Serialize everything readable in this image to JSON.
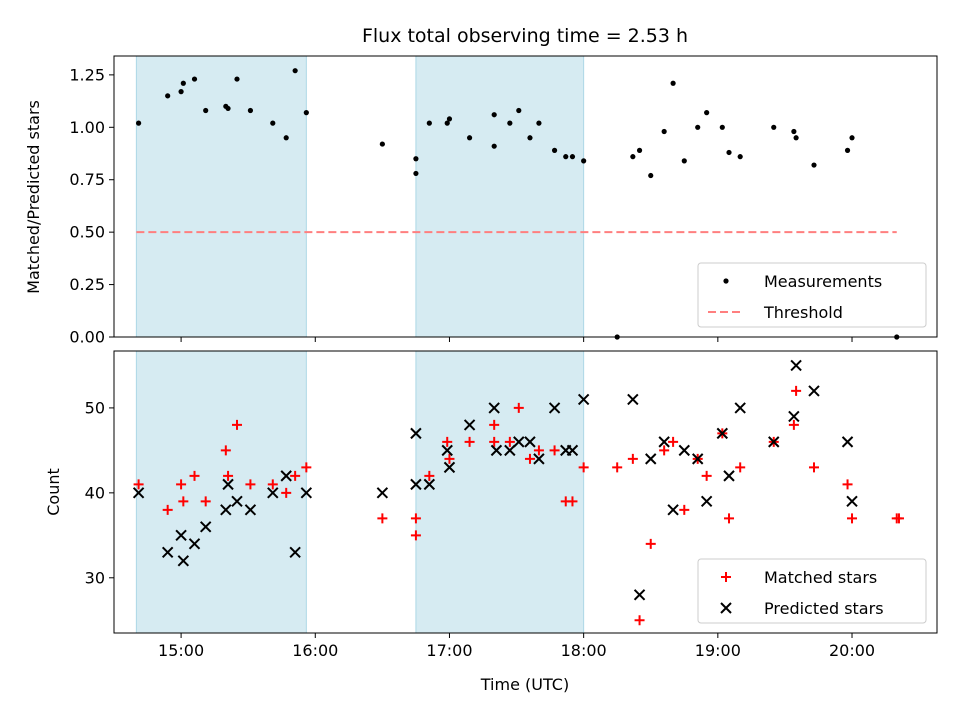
{
  "chart_data": [
    {
      "type": "scatter",
      "title": "Flux total observing time = 2.53 h",
      "xlabel": "",
      "ylabel": "Matched/Predicted stars",
      "ylim": [
        0,
        1.34
      ],
      "yticks": [
        "0.00",
        "0.25",
        "0.50",
        "0.75",
        "1.00",
        "1.25"
      ],
      "shaded_spans": [
        [
          "14:40",
          "15:56"
        ],
        [
          "16:45",
          "18:00"
        ]
      ],
      "series": [
        {
          "name": "Measurements",
          "marker": "dot",
          "color": "#000000",
          "points": [
            [
              "14:41",
              1.02
            ],
            [
              "14:54",
              1.15
            ],
            [
              "15:00",
              1.17
            ],
            [
              "15:01",
              1.21
            ],
            [
              "15:06",
              1.23
            ],
            [
              "15:11",
              1.08
            ],
            [
              "15:20",
              1.1
            ],
            [
              "15:21",
              1.09
            ],
            [
              "15:25",
              1.23
            ],
            [
              "15:31",
              1.08
            ],
            [
              "15:41",
              1.02
            ],
            [
              "15:47",
              0.95
            ],
            [
              "15:51",
              1.27
            ],
            [
              "15:56",
              1.07
            ],
            [
              "16:30",
              0.92
            ],
            [
              "16:45",
              0.85
            ],
            [
              "16:45",
              0.78
            ],
            [
              "16:51",
              1.02
            ],
            [
              "16:59",
              1.02
            ],
            [
              "17:00",
              1.04
            ],
            [
              "17:09",
              0.95
            ],
            [
              "17:20",
              0.91
            ],
            [
              "17:20",
              1.06
            ],
            [
              "17:27",
              1.02
            ],
            [
              "17:31",
              1.08
            ],
            [
              "17:36",
              0.95
            ],
            [
              "17:40",
              1.02
            ],
            [
              "17:47",
              0.89
            ],
            [
              "17:52",
              0.86
            ],
            [
              "17:55",
              0.86
            ],
            [
              "18:00",
              0.84
            ],
            [
              "18:15",
              0.0
            ],
            [
              "18:22",
              0.86
            ],
            [
              "18:25",
              0.89
            ],
            [
              "18:30",
              0.77
            ],
            [
              "18:36",
              0.98
            ],
            [
              "18:40",
              1.21
            ],
            [
              "18:45",
              0.84
            ],
            [
              "18:51",
              1.0
            ],
            [
              "18:55",
              1.07
            ],
            [
              "19:02",
              1.0
            ],
            [
              "19:05",
              0.88
            ],
            [
              "19:10",
              0.86
            ],
            [
              "19:25",
              1.0
            ],
            [
              "19:34",
              0.98
            ],
            [
              "19:35",
              0.95
            ],
            [
              "19:43",
              0.82
            ],
            [
              "19:58",
              0.89
            ],
            [
              "20:00",
              0.95
            ],
            [
              "20:20",
              0.0
            ]
          ]
        },
        {
          "name": "Threshold",
          "marker": "dashed-line",
          "color": "#ff7f7f",
          "points": [
            [
              "14:40",
              0.5
            ],
            [
              "20:20",
              0.5
            ]
          ]
        }
      ],
      "legend": "lower right"
    },
    {
      "type": "scatter",
      "title": "",
      "xlabel": "Time (UTC)",
      "ylabel": "Count",
      "ylim": [
        23.5,
        56.7
      ],
      "yticks": [
        "30",
        "40",
        "50"
      ],
      "xticks": [
        "15:00",
        "16:00",
        "17:00",
        "18:00",
        "19:00",
        "20:00"
      ],
      "xlim": [
        "14:30",
        "20:38"
      ],
      "shaded_spans": [
        [
          "14:40",
          "15:56"
        ],
        [
          "16:45",
          "18:00"
        ]
      ],
      "series": [
        {
          "name": "Matched stars",
          "marker": "plus",
          "color": "#ff0000",
          "points": [
            [
              "14:41",
              41
            ],
            [
              "14:54",
              38
            ],
            [
              "15:00",
              41
            ],
            [
              "15:01",
              39
            ],
            [
              "15:06",
              42
            ],
            [
              "15:11",
              39
            ],
            [
              "15:20",
              45
            ],
            [
              "15:21",
              42
            ],
            [
              "15:25",
              48
            ],
            [
              "15:31",
              41
            ],
            [
              "15:41",
              41
            ],
            [
              "15:47",
              40
            ],
            [
              "15:51",
              42
            ],
            [
              "15:56",
              43
            ],
            [
              "16:30",
              37
            ],
            [
              "16:45",
              37
            ],
            [
              "16:45",
              35
            ],
            [
              "16:51",
              42
            ],
            [
              "16:59",
              46
            ],
            [
              "17:00",
              44
            ],
            [
              "17:09",
              46
            ],
            [
              "17:20",
              48
            ],
            [
              "17:20",
              46
            ],
            [
              "17:27",
              46
            ],
            [
              "17:31",
              50
            ],
            [
              "17:36",
              44
            ],
            [
              "17:40",
              45
            ],
            [
              "17:47",
              45
            ],
            [
              "17:52",
              39
            ],
            [
              "17:55",
              39
            ],
            [
              "18:00",
              43
            ],
            [
              "18:15",
              43
            ],
            [
              "18:22",
              44
            ],
            [
              "18:25",
              25
            ],
            [
              "18:30",
              34
            ],
            [
              "18:36",
              45
            ],
            [
              "18:40",
              46
            ],
            [
              "18:45",
              38
            ],
            [
              "18:51",
              44
            ],
            [
              "18:55",
              42
            ],
            [
              "19:02",
              47
            ],
            [
              "19:05",
              37
            ],
            [
              "19:10",
              43
            ],
            [
              "19:25",
              46
            ],
            [
              "19:34",
              48
            ],
            [
              "19:35",
              52
            ],
            [
              "19:43",
              43
            ],
            [
              "19:58",
              41
            ],
            [
              "20:00",
              37
            ],
            [
              "20:20",
              37
            ],
            [
              "20:21",
              37
            ]
          ]
        },
        {
          "name": "Predicted stars",
          "marker": "x",
          "color": "#000000",
          "points": [
            [
              "14:41",
              40
            ],
            [
              "14:54",
              33
            ],
            [
              "15:00",
              35
            ],
            [
              "15:01",
              32
            ],
            [
              "15:06",
              34
            ],
            [
              "15:11",
              36
            ],
            [
              "15:20",
              38
            ],
            [
              "15:21",
              41
            ],
            [
              "15:25",
              39
            ],
            [
              "15:31",
              38
            ],
            [
              "15:41",
              40
            ],
            [
              "15:47",
              42
            ],
            [
              "15:51",
              33
            ],
            [
              "15:56",
              40
            ],
            [
              "16:30",
              40
            ],
            [
              "16:45",
              47
            ],
            [
              "16:45",
              41
            ],
            [
              "16:51",
              41
            ],
            [
              "16:59",
              45
            ],
            [
              "17:00",
              43
            ],
            [
              "17:09",
              48
            ],
            [
              "17:20",
              50
            ],
            [
              "17:21",
              45
            ],
            [
              "17:27",
              45
            ],
            [
              "17:31",
              46
            ],
            [
              "17:36",
              46
            ],
            [
              "17:40",
              44
            ],
            [
              "17:47",
              50
            ],
            [
              "17:52",
              45
            ],
            [
              "17:55",
              45
            ],
            [
              "18:00",
              51
            ],
            [
              "18:22",
              51
            ],
            [
              "18:25",
              28
            ],
            [
              "18:30",
              44
            ],
            [
              "18:36",
              46
            ],
            [
              "18:40",
              38
            ],
            [
              "18:45",
              45
            ],
            [
              "18:51",
              44
            ],
            [
              "18:55",
              39
            ],
            [
              "19:02",
              47
            ],
            [
              "19:05",
              42
            ],
            [
              "19:10",
              50
            ],
            [
              "19:25",
              46
            ],
            [
              "19:34",
              49
            ],
            [
              "19:35",
              55
            ],
            [
              "19:43",
              52
            ],
            [
              "19:58",
              46
            ],
            [
              "20:00",
              39
            ]
          ]
        }
      ],
      "legend": "lower right"
    }
  ]
}
